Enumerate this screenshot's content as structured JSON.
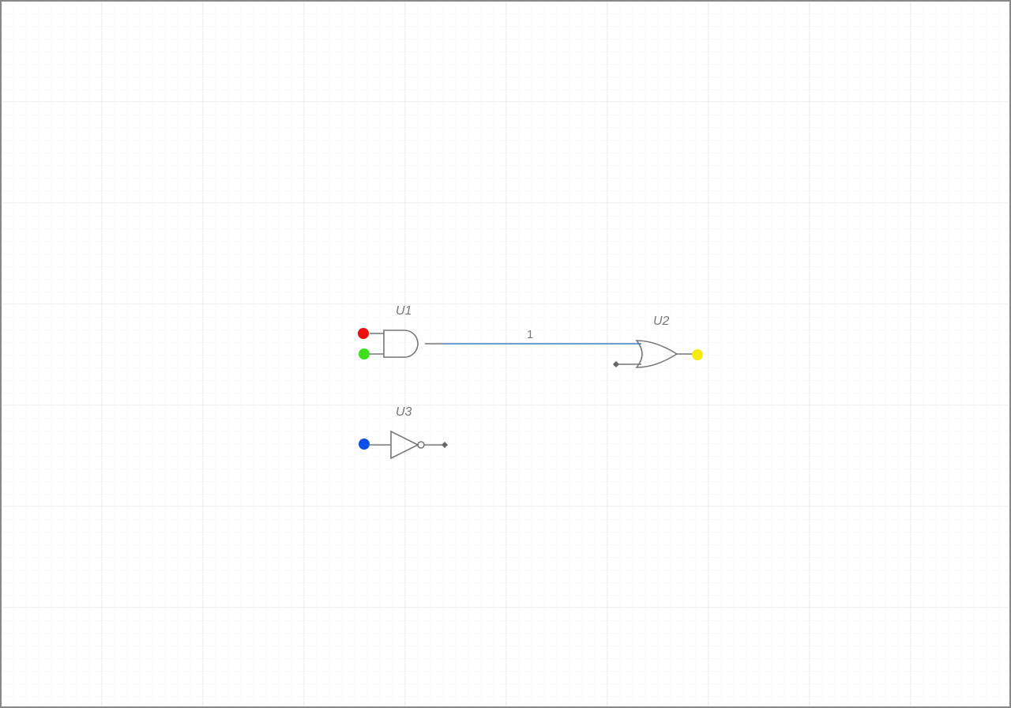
{
  "components": [
    {
      "label": "U1"
    },
    {
      "label": "U2"
    },
    {
      "label": "U3"
    }
  ],
  "wires": [
    {
      "label": "1"
    }
  ]
}
